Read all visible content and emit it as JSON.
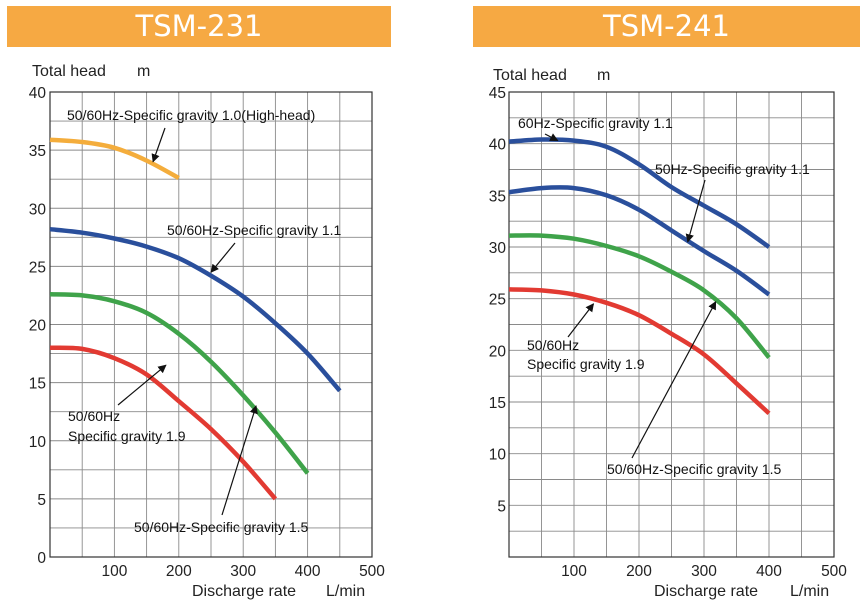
{
  "panels": [
    {
      "banner": "TSM-231",
      "ylabel_text": "Total head",
      "ylabel_unit": "m",
      "xlabel_text": "Discharge rate",
      "xlabel_unit": "L/min",
      "yticks": [
        "0",
        "5",
        "10",
        "15",
        "20",
        "25",
        "30",
        "35",
        "40"
      ],
      "xticks": [
        "100",
        "200",
        "300",
        "400",
        "500"
      ]
    },
    {
      "banner": "TSM-241",
      "ylabel_text": "Total head",
      "ylabel_unit": "m",
      "xlabel_text": "Discharge rate",
      "xlabel_unit": "L/min",
      "yticks": [
        "5",
        "10",
        "15",
        "20",
        "25",
        "30",
        "35",
        "40",
        "45"
      ],
      "xticks": [
        "100",
        "200",
        "300",
        "400",
        "500"
      ]
    }
  ],
  "colors": {
    "orange": "#f4ad3c",
    "blue": "#2a4f9c",
    "green": "#3fa34a",
    "red": "#e23a32",
    "banner": "#f6a943"
  },
  "chart_data": [
    {
      "type": "line",
      "title": "TSM-231",
      "xlabel": "Discharge rate L/min",
      "ylabel": "Total head m",
      "xlim": [
        0,
        500
      ],
      "ylim": [
        0,
        40
      ],
      "grid": true,
      "series": [
        {
          "color": "orange",
          "x": [
            0,
            50,
            100,
            150,
            200
          ],
          "y": [
            35.9,
            35.7,
            35.2,
            34.1,
            32.6
          ]
        },
        {
          "color": "blue",
          "x": [
            0,
            50,
            100,
            150,
            200,
            250,
            300,
            350,
            400,
            450
          ],
          "y": [
            28.2,
            27.9,
            27.4,
            26.7,
            25.7,
            24.2,
            22.4,
            20.1,
            17.5,
            14.3
          ]
        },
        {
          "color": "green",
          "x": [
            0,
            50,
            100,
            150,
            200,
            250,
            300,
            350,
            400
          ],
          "y": [
            22.6,
            22.5,
            22.0,
            21.0,
            19.2,
            16.8,
            13.9,
            10.7,
            7.2
          ]
        },
        {
          "color": "red",
          "x": [
            0,
            50,
            100,
            150,
            200,
            250,
            300,
            350
          ],
          "y": [
            18.0,
            17.9,
            17.1,
            15.7,
            13.4,
            11.0,
            8.2,
            5.0
          ]
        }
      ],
      "annotations": [
        {
          "text": "50/60Hz-Specific gravity 1.0(High-head)",
          "target": [
            160,
            34.0
          ]
        },
        {
          "text": "50/60Hz-Specific gravity 1.1",
          "target": [
            250,
            24.5
          ]
        },
        {
          "text": "50/60Hz",
          "target": [
            180,
            16.5
          ]
        },
        {
          "text": "Specific gravity 1.9",
          "target": [
            180,
            16.5
          ]
        },
        {
          "text": "50/60Hz-Specific gravity 1.5",
          "target": [
            320,
            13.0
          ]
        }
      ]
    },
    {
      "type": "line",
      "title": "TSM-241",
      "xlabel": "Discharge rate L/min",
      "ylabel": "Total head m",
      "xlim": [
        0,
        500
      ],
      "ylim": [
        0,
        45
      ],
      "grid": true,
      "series": [
        {
          "color": "blue",
          "x": [
            0,
            50,
            100,
            150,
            200,
            250,
            300,
            350,
            400
          ],
          "y": [
            40.2,
            40.4,
            40.3,
            39.7,
            38.0,
            35.8,
            34.0,
            32.2,
            30.0
          ]
        },
        {
          "color": "blue",
          "x": [
            0,
            50,
            100,
            150,
            200,
            250,
            300,
            350,
            400
          ],
          "y": [
            35.3,
            35.7,
            35.7,
            35.0,
            33.6,
            31.6,
            29.6,
            27.7,
            25.4
          ]
        },
        {
          "color": "green",
          "x": [
            0,
            50,
            100,
            150,
            200,
            250,
            300,
            350,
            400
          ],
          "y": [
            31.1,
            31.1,
            30.8,
            30.1,
            29.1,
            27.6,
            25.8,
            23.1,
            19.3
          ]
        },
        {
          "color": "red",
          "x": [
            0,
            50,
            100,
            150,
            200,
            250,
            300,
            350,
            400
          ],
          "y": [
            25.9,
            25.8,
            25.4,
            24.6,
            23.4,
            21.6,
            19.6,
            16.8,
            13.9
          ]
        }
      ],
      "annotations": [
        {
          "text": "60Hz-Specific gravity 1.1",
          "target": [
            75,
            40.3
          ]
        },
        {
          "text": "50Hz-Specific gravity 1.1",
          "target": [
            275,
            30.5
          ]
        },
        {
          "text": "50/60Hz",
          "target": [
            130,
            24.5
          ]
        },
        {
          "text": "Specific gravity 1.9",
          "target": [
            130,
            24.5
          ]
        },
        {
          "text": "50/60Hz-Specific gravity 1.5",
          "target": [
            318,
            24.7
          ]
        }
      ]
    }
  ]
}
